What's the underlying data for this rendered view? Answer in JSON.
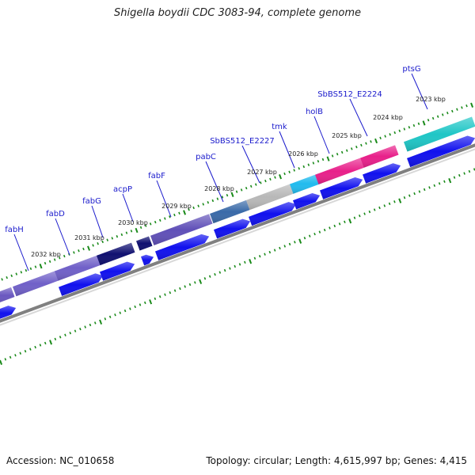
{
  "title": "Shigella boydii CDC 3083-94, complete genome",
  "footer": {
    "accession": "Accession: NC_010658",
    "summary": "Topology: circular; Length: 4,615,997 bp; Genes: 4,415"
  },
  "kbp_labels": [
    "2023 kbp",
    "2024 kbp",
    "2025 kbp",
    "2026 kbp",
    "2027 kbp",
    "2028 kbp",
    "2029 kbp",
    "2030 kbp",
    "2031 kbp",
    "2032 kbp"
  ],
  "genes": [
    {
      "name": "ptsG",
      "color": "#1fc6c6"
    },
    {
      "name": "SbBS512_E2224",
      "color": "#e8208a"
    },
    {
      "name": "holB",
      "color": "#e8208a"
    },
    {
      "name": "tmk",
      "color": "#22bbee"
    },
    {
      "name": "SbBS512_E2227",
      "color": "#b8b8b8"
    },
    {
      "name": "pabC",
      "color": "#3a6aa8"
    },
    {
      "name": "fabF",
      "color": "#6050b8"
    },
    {
      "name": "acpP",
      "color": "#101070"
    },
    {
      "name": "fabG",
      "color": "#101070"
    },
    {
      "name": "fabD",
      "color": "#7060c8"
    },
    {
      "name": "fabH",
      "color": "#7060c8"
    }
  ],
  "colors": {
    "cds_lower": "#1111ee",
    "backbone": "#808080",
    "tick": "#1a8a1a"
  }
}
